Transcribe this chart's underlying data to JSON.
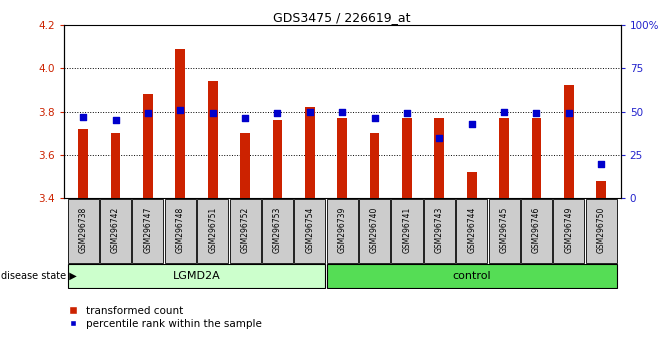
{
  "title": "GDS3475 / 226619_at",
  "samples": [
    "GSM296738",
    "GSM296742",
    "GSM296747",
    "GSM296748",
    "GSM296751",
    "GSM296752",
    "GSM296753",
    "GSM296754",
    "GSM296739",
    "GSM296740",
    "GSM296741",
    "GSM296743",
    "GSM296744",
    "GSM296745",
    "GSM296746",
    "GSM296749",
    "GSM296750"
  ],
  "bar_values": [
    3.72,
    3.7,
    3.88,
    4.09,
    3.94,
    3.7,
    3.76,
    3.82,
    3.77,
    3.7,
    3.77,
    3.77,
    3.52,
    3.77,
    3.77,
    3.92,
    3.48
  ],
  "dot_values_pct": [
    47,
    45,
    49,
    51,
    49,
    46,
    49,
    50,
    50,
    46,
    49,
    35,
    43,
    50,
    49,
    49,
    20
  ],
  "bar_bottom": 3.4,
  "ylim_left": [
    3.4,
    4.2
  ],
  "ylim_right": [
    0,
    100
  ],
  "yticks_left": [
    3.4,
    3.6,
    3.8,
    4.0,
    4.2
  ],
  "yticks_right": [
    0,
    25,
    50,
    75,
    100
  ],
  "groups": [
    {
      "label": "LGMD2A",
      "start": 0,
      "end": 8,
      "color": "#ccffcc"
    },
    {
      "label": "control",
      "start": 8,
      "end": 17,
      "color": "#55dd55"
    }
  ],
  "bar_color": "#cc2200",
  "dot_color": "#0000cc",
  "plot_bg_color": "#ffffff",
  "tick_label_bg": "#cccccc",
  "legend_items": [
    "transformed count",
    "percentile rank within the sample"
  ],
  "disease_state_label": "disease state",
  "ylabel_left_color": "#cc2200",
  "ylabel_right_color": "#2222cc",
  "grid_yticks": [
    3.6,
    3.8,
    4.0
  ],
  "bar_width": 0.3
}
